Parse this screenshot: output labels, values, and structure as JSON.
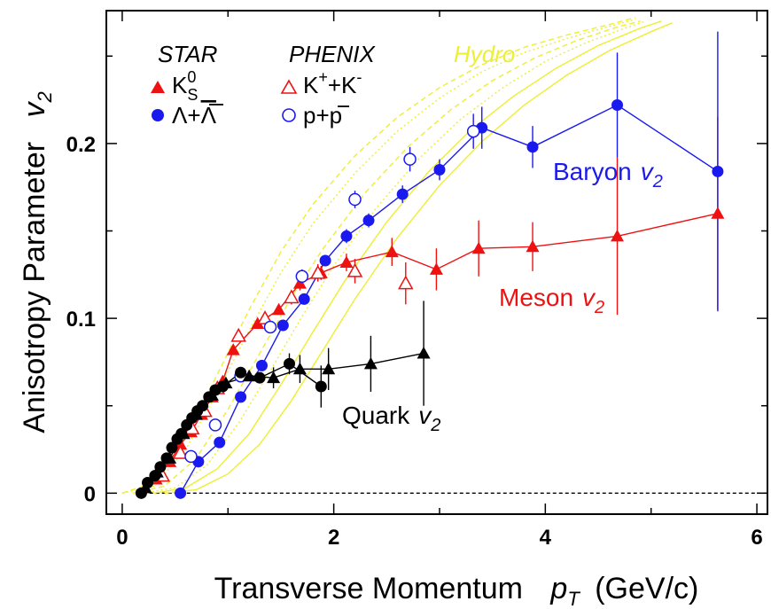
{
  "chart_data": {
    "type": "scatter",
    "xlabel": "Transverse Momentum",
    "xlabel_var": "p",
    "xlabel_sub": "T",
    "xlabel_unit": "(GeV/c)",
    "ylabel": "Anisotropy Parameter",
    "ylabel_var": "v",
    "ylabel_sub": "2",
    "xlim": [
      -0.15,
      6.1
    ],
    "ylim": [
      -0.012,
      0.276
    ],
    "xticks": [
      0,
      2,
      4,
      6
    ],
    "yticks": [
      0,
      0.1,
      0.2
    ],
    "xtick_labels": [
      "0",
      "2",
      "4",
      "6"
    ],
    "ytick_labels": [
      "0",
      "0.1",
      "0.2"
    ],
    "grid": false,
    "legend_position": "top-left",
    "legend": {
      "star": "STAR",
      "phenix": "PHENIX",
      "hydro": "Hydro",
      "kaon_main": "K",
      "kaon_sup": "0",
      "kaon_sub": "S",
      "lambda_text": "Λ+",
      "lambda_bar": "Λ",
      "kplus_k": "K",
      "kplus_sup": "+",
      "kplus_mid": "+K",
      "kplus_sup2": "-",
      "proton_text": "p+",
      "proton_bar": "p"
    },
    "annotations": {
      "baryon": "Baryon",
      "meson": "Meson",
      "quark": "Quark",
      "var": "v",
      "sub": "2"
    },
    "colors": {
      "meson": "#ee1111",
      "baryon": "#1a1aee",
      "quark": "#000000",
      "hydro": "#eeee33"
    },
    "series": [
      {
        "name": "STAR K0S",
        "marker": "filled-triangle",
        "color": "#ee1111",
        "connected": true,
        "points": [
          {
            "x": 0.32,
            "y": 0.008,
            "err": 0.003
          },
          {
            "x": 0.45,
            "y": 0.018,
            "err": 0.003
          },
          {
            "x": 0.55,
            "y": 0.028,
            "err": 0.003
          },
          {
            "x": 0.65,
            "y": 0.035,
            "err": 0.003
          },
          {
            "x": 0.75,
            "y": 0.045,
            "err": 0.003
          },
          {
            "x": 0.85,
            "y": 0.055,
            "err": 0.003
          },
          {
            "x": 0.95,
            "y": 0.064,
            "err": 0.003
          },
          {
            "x": 1.05,
            "y": 0.082,
            "err": 0.003
          },
          {
            "x": 1.28,
            "y": 0.097,
            "err": 0.003
          },
          {
            "x": 1.48,
            "y": 0.105,
            "err": 0.003
          },
          {
            "x": 1.68,
            "y": 0.12,
            "err": 0.004
          },
          {
            "x": 1.88,
            "y": 0.126,
            "err": 0.004
          },
          {
            "x": 2.12,
            "y": 0.132,
            "err": 0.005
          },
          {
            "x": 2.55,
            "y": 0.138,
            "err": 0.008
          },
          {
            "x": 2.97,
            "y": 0.128,
            "err": 0.012
          },
          {
            "x": 3.37,
            "y": 0.14,
            "err": 0.016
          },
          {
            "x": 3.88,
            "y": 0.141,
            "err": 0.014
          },
          {
            "x": 4.68,
            "y": 0.147,
            "err": 0.045
          },
          {
            "x": 5.63,
            "y": 0.16,
            "err": 0.055
          }
        ]
      },
      {
        "name": "STAR Lambda",
        "marker": "filled-circle",
        "color": "#1a1aee",
        "connected": true,
        "points": [
          {
            "x": 0.55,
            "y": 0.0,
            "err": 0.003
          },
          {
            "x": 0.72,
            "y": 0.018,
            "err": 0.003
          },
          {
            "x": 0.92,
            "y": 0.029,
            "err": 0.003
          },
          {
            "x": 1.12,
            "y": 0.055,
            "err": 0.003
          },
          {
            "x": 1.32,
            "y": 0.073,
            "err": 0.003
          },
          {
            "x": 1.52,
            "y": 0.096,
            "err": 0.003
          },
          {
            "x": 1.72,
            "y": 0.111,
            "err": 0.003
          },
          {
            "x": 1.92,
            "y": 0.133,
            "err": 0.003
          },
          {
            "x": 2.12,
            "y": 0.147,
            "err": 0.004
          },
          {
            "x": 2.33,
            "y": 0.156,
            "err": 0.004
          },
          {
            "x": 2.65,
            "y": 0.171,
            "err": 0.005
          },
          {
            "x": 3.0,
            "y": 0.185,
            "err": 0.006
          },
          {
            "x": 3.4,
            "y": 0.209,
            "err": 0.012
          },
          {
            "x": 3.88,
            "y": 0.198,
            "err": 0.012
          },
          {
            "x": 4.68,
            "y": 0.222,
            "err": 0.03
          },
          {
            "x": 5.63,
            "y": 0.184,
            "err": 0.08
          }
        ]
      },
      {
        "name": "PHENIX K++K-",
        "marker": "open-triangle",
        "color": "#ee1111",
        "connected": false,
        "points": [
          {
            "x": 0.38,
            "y": 0.01,
            "err": 0.002
          },
          {
            "x": 0.55,
            "y": 0.023,
            "err": 0.002
          },
          {
            "x": 0.66,
            "y": 0.037,
            "err": 0.002
          },
          {
            "x": 0.78,
            "y": 0.047,
            "err": 0.002
          },
          {
            "x": 0.9,
            "y": 0.06,
            "err": 0.002
          },
          {
            "x": 1.1,
            "y": 0.09,
            "err": 0.003
          },
          {
            "x": 1.35,
            "y": 0.1,
            "err": 0.003
          },
          {
            "x": 1.6,
            "y": 0.112,
            "err": 0.004
          },
          {
            "x": 1.85,
            "y": 0.126,
            "err": 0.005
          },
          {
            "x": 2.2,
            "y": 0.127,
            "err": 0.007
          },
          {
            "x": 2.68,
            "y": 0.12,
            "err": 0.012
          }
        ]
      },
      {
        "name": "PHENIX p+pbar",
        "marker": "open-circle",
        "color": "#1a1aee",
        "connected": false,
        "points": [
          {
            "x": 0.65,
            "y": 0.021,
            "err": 0.002
          },
          {
            "x": 0.88,
            "y": 0.039,
            "err": 0.002
          },
          {
            "x": 1.12,
            "y": 0.067,
            "err": 0.003
          },
          {
            "x": 1.4,
            "y": 0.095,
            "err": 0.003
          },
          {
            "x": 1.7,
            "y": 0.124,
            "err": 0.004
          },
          {
            "x": 2.2,
            "y": 0.168,
            "err": 0.005
          },
          {
            "x": 2.72,
            "y": 0.191,
            "err": 0.007
          },
          {
            "x": 3.32,
            "y": 0.207,
            "err": 0.01
          }
        ]
      },
      {
        "name": "Quark v2 (baryon scaled)",
        "marker": "filled-circle",
        "color": "#000000",
        "connected": true,
        "points": [
          {
            "x": 0.18,
            "y": 0.0,
            "err": 0.002
          },
          {
            "x": 0.24,
            "y": 0.006,
            "err": 0.002
          },
          {
            "x": 0.31,
            "y": 0.01,
            "err": 0.002
          },
          {
            "x": 0.36,
            "y": 0.015,
            "err": 0.002
          },
          {
            "x": 0.42,
            "y": 0.02,
            "err": 0.002
          },
          {
            "x": 0.47,
            "y": 0.026,
            "err": 0.002
          },
          {
            "x": 0.52,
            "y": 0.031,
            "err": 0.002
          },
          {
            "x": 0.56,
            "y": 0.034,
            "err": 0.002
          },
          {
            "x": 0.61,
            "y": 0.039,
            "err": 0.002
          },
          {
            "x": 0.66,
            "y": 0.043,
            "err": 0.002
          },
          {
            "x": 0.71,
            "y": 0.047,
            "err": 0.002
          },
          {
            "x": 0.76,
            "y": 0.05,
            "err": 0.002
          },
          {
            "x": 0.82,
            "y": 0.055,
            "err": 0.002
          },
          {
            "x": 0.88,
            "y": 0.059,
            "err": 0.002
          },
          {
            "x": 0.95,
            "y": 0.061,
            "err": 0.002
          },
          {
            "x": 1.12,
            "y": 0.069,
            "err": 0.003
          },
          {
            "x": 1.3,
            "y": 0.066,
            "err": 0.003
          },
          {
            "x": 1.58,
            "y": 0.074,
            "err": 0.006
          },
          {
            "x": 1.88,
            "y": 0.061,
            "err": 0.012
          }
        ]
      },
      {
        "name": "Quark v2 (meson scaled)",
        "marker": "filled-triangle",
        "color": "#000000",
        "connected": true,
        "points": [
          {
            "x": 0.22,
            "y": 0.003,
            "err": 0.002
          },
          {
            "x": 0.33,
            "y": 0.012,
            "err": 0.002
          },
          {
            "x": 0.45,
            "y": 0.02,
            "err": 0.002
          },
          {
            "x": 0.58,
            "y": 0.034,
            "err": 0.002
          },
          {
            "x": 0.7,
            "y": 0.045,
            "err": 0.002
          },
          {
            "x": 0.85,
            "y": 0.056,
            "err": 0.002
          },
          {
            "x": 0.98,
            "y": 0.063,
            "err": 0.002
          },
          {
            "x": 1.2,
            "y": 0.067,
            "err": 0.003
          },
          {
            "x": 1.43,
            "y": 0.066,
            "err": 0.006
          },
          {
            "x": 1.68,
            "y": 0.071,
            "err": 0.008
          },
          {
            "x": 1.95,
            "y": 0.071,
            "err": 0.012
          },
          {
            "x": 2.35,
            "y": 0.074,
            "err": 0.016
          },
          {
            "x": 2.85,
            "y": 0.08,
            "err": 0.03
          }
        ]
      }
    ],
    "hydro_curves": [
      {
        "style": "dashed",
        "points": [
          [
            0.0,
            0.0
          ],
          [
            0.3,
            0.006
          ],
          [
            0.6,
            0.032
          ],
          [
            0.9,
            0.068
          ],
          [
            1.2,
            0.105
          ],
          [
            1.5,
            0.138
          ],
          [
            1.8,
            0.165
          ],
          [
            2.2,
            0.193
          ],
          [
            2.6,
            0.215
          ],
          [
            3.0,
            0.232
          ],
          [
            3.4,
            0.245
          ],
          [
            3.8,
            0.255
          ],
          [
            4.2,
            0.262
          ],
          [
            4.6,
            0.268
          ],
          [
            4.85,
            0.272
          ]
        ]
      },
      {
        "style": "dotted",
        "points": [
          [
            0.0,
            0.0
          ],
          [
            0.3,
            0.004
          ],
          [
            0.6,
            0.025
          ],
          [
            0.9,
            0.058
          ],
          [
            1.2,
            0.093
          ],
          [
            1.5,
            0.126
          ],
          [
            1.8,
            0.154
          ],
          [
            2.2,
            0.183
          ],
          [
            2.6,
            0.207
          ],
          [
            3.0,
            0.226
          ],
          [
            3.4,
            0.241
          ],
          [
            3.8,
            0.252
          ],
          [
            4.2,
            0.26
          ],
          [
            4.6,
            0.267
          ],
          [
            4.85,
            0.271
          ]
        ]
      },
      {
        "style": "dashed",
        "points": [
          [
            0.1,
            0.0
          ],
          [
            0.4,
            0.004
          ],
          [
            0.7,
            0.02
          ],
          [
            1.0,
            0.048
          ],
          [
            1.3,
            0.08
          ],
          [
            1.6,
            0.112
          ],
          [
            1.9,
            0.14
          ],
          [
            2.3,
            0.172
          ],
          [
            2.7,
            0.198
          ],
          [
            3.1,
            0.219
          ],
          [
            3.5,
            0.236
          ],
          [
            3.9,
            0.249
          ],
          [
            4.3,
            0.259
          ],
          [
            4.7,
            0.267
          ],
          [
            4.9,
            0.27
          ]
        ]
      },
      {
        "style": "dotted",
        "points": [
          [
            0.2,
            0.0
          ],
          [
            0.5,
            0.003
          ],
          [
            0.8,
            0.016
          ],
          [
            1.1,
            0.04
          ],
          [
            1.4,
            0.07
          ],
          [
            1.7,
            0.101
          ],
          [
            2.0,
            0.13
          ],
          [
            2.4,
            0.163
          ],
          [
            2.8,
            0.191
          ],
          [
            3.2,
            0.214
          ],
          [
            3.6,
            0.232
          ],
          [
            4.0,
            0.247
          ],
          [
            4.4,
            0.258
          ],
          [
            4.8,
            0.267
          ],
          [
            4.95,
            0.27
          ]
        ]
      },
      {
        "style": "solid",
        "points": [
          [
            0.3,
            0.0
          ],
          [
            0.6,
            0.003
          ],
          [
            0.9,
            0.014
          ],
          [
            1.2,
            0.034
          ],
          [
            1.5,
            0.062
          ],
          [
            1.8,
            0.092
          ],
          [
            2.1,
            0.121
          ],
          [
            2.5,
            0.155
          ],
          [
            2.9,
            0.184
          ],
          [
            3.3,
            0.208
          ],
          [
            3.7,
            0.227
          ],
          [
            4.1,
            0.243
          ],
          [
            4.5,
            0.256
          ],
          [
            4.9,
            0.266
          ],
          [
            5.1,
            0.27
          ]
        ]
      },
      {
        "style": "solid",
        "points": [
          [
            0.4,
            0.0
          ],
          [
            0.7,
            0.002
          ],
          [
            1.0,
            0.011
          ],
          [
            1.3,
            0.028
          ],
          [
            1.6,
            0.053
          ],
          [
            1.9,
            0.082
          ],
          [
            2.2,
            0.111
          ],
          [
            2.6,
            0.146
          ],
          [
            3.0,
            0.176
          ],
          [
            3.4,
            0.201
          ],
          [
            3.8,
            0.222
          ],
          [
            4.2,
            0.239
          ],
          [
            4.6,
            0.253
          ],
          [
            5.0,
            0.264
          ],
          [
            5.2,
            0.269
          ]
        ]
      }
    ]
  }
}
